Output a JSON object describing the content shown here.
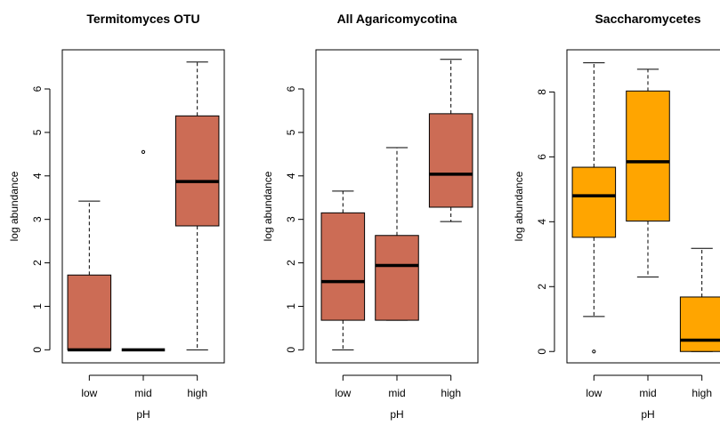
{
  "chart_data": [
    {
      "type": "boxplot",
      "title": "Termitomyces OTU",
      "xlabel": "pH",
      "ylabel": "log abundance",
      "categories": [
        "low",
        "mid",
        "high"
      ],
      "ylim": [
        -0.3,
        6.9
      ],
      "yticks": [
        0,
        1,
        2,
        3,
        4,
        5,
        6
      ],
      "fill_color": "#CC6C55",
      "boxes": [
        {
          "category": "low",
          "whisker_low": 0,
          "q1": 0,
          "median": 0,
          "q3": 1.72,
          "whisker_high": 3.42,
          "outliers": []
        },
        {
          "category": "mid",
          "whisker_low": 0,
          "q1": 0,
          "median": 0,
          "q3": 0,
          "whisker_high": 0,
          "outliers": [
            4.55
          ]
        },
        {
          "category": "high",
          "whisker_low": 0,
          "q1": 2.85,
          "median": 3.87,
          "q3": 5.38,
          "whisker_high": 6.62,
          "outliers": []
        }
      ]
    },
    {
      "type": "boxplot",
      "title": "All Agaricomycotina",
      "xlabel": "pH",
      "ylabel": "log abundance",
      "categories": [
        "low",
        "mid",
        "high"
      ],
      "ylim": [
        -0.3,
        6.9
      ],
      "yticks": [
        0,
        1,
        2,
        3,
        4,
        5,
        6
      ],
      "fill_color": "#CC6C55",
      "boxes": [
        {
          "category": "low",
          "whisker_low": 0,
          "q1": 0.68,
          "median": 1.57,
          "q3": 3.15,
          "whisker_high": 3.65,
          "outliers": []
        },
        {
          "category": "mid",
          "whisker_low": 0.68,
          "q1": 0.68,
          "median": 1.94,
          "q3": 2.63,
          "whisker_high": 4.65,
          "outliers": []
        },
        {
          "category": "high",
          "whisker_low": 2.95,
          "q1": 3.28,
          "median": 4.04,
          "q3": 5.43,
          "whisker_high": 6.68,
          "outliers": []
        }
      ]
    },
    {
      "type": "boxplot",
      "title": "Saccharomycetes",
      "xlabel": "pH",
      "ylabel": "log abundance",
      "categories": [
        "low",
        "mid",
        "high"
      ],
      "ylim": [
        -0.35,
        9.3
      ],
      "yticks": [
        0,
        2,
        4,
        6,
        8
      ],
      "fill_color": "#FFA500",
      "boxes": [
        {
          "category": "low",
          "whisker_low": 1.08,
          "q1": 3.52,
          "median": 4.8,
          "q3": 5.68,
          "whisker_high": 8.9,
          "outliers": [
            0
          ]
        },
        {
          "category": "mid",
          "whisker_low": 2.3,
          "q1": 4.02,
          "median": 5.85,
          "q3": 8.03,
          "whisker_high": 8.7,
          "outliers": []
        },
        {
          "category": "high",
          "whisker_low": 0,
          "q1": 0,
          "median": 0.35,
          "q3": 1.68,
          "whisker_high": 3.18,
          "outliers": []
        }
      ]
    }
  ]
}
